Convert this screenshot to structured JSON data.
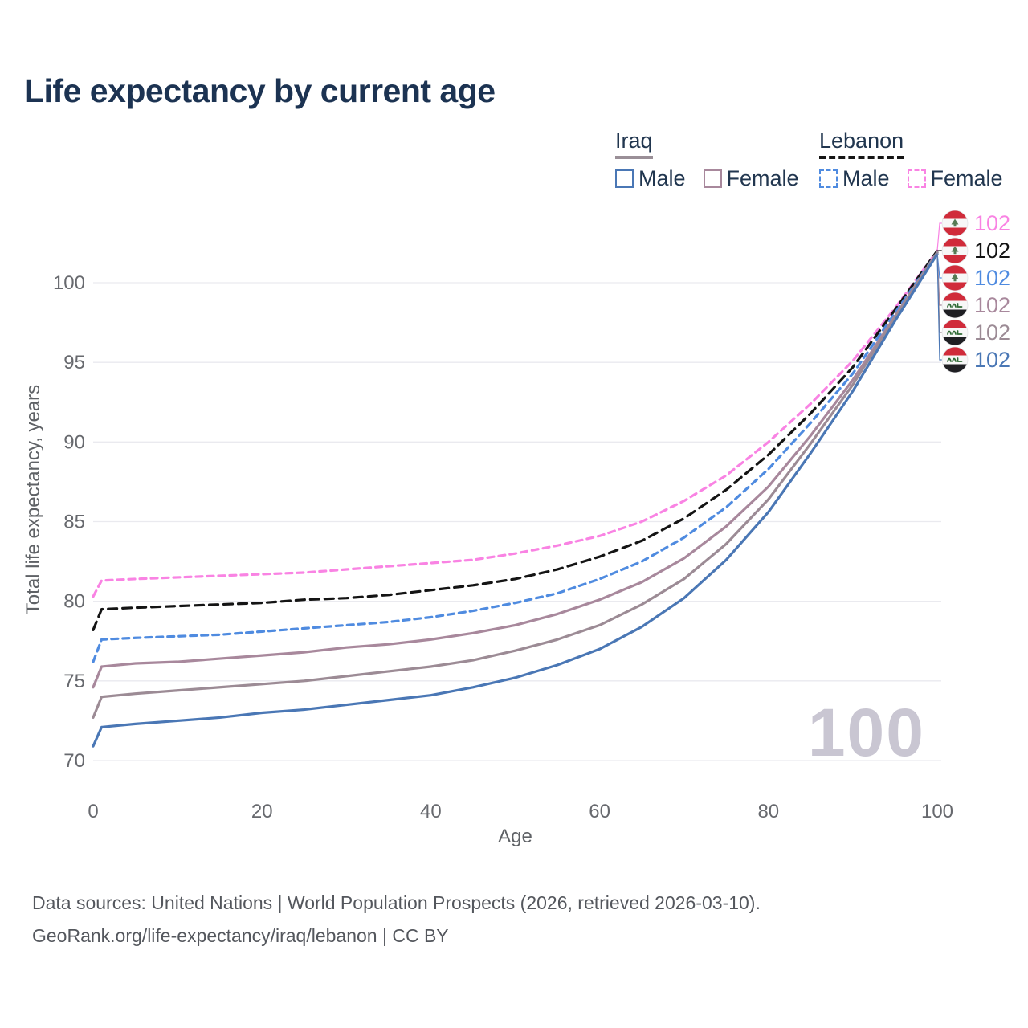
{
  "title": "Life expectancy by current age",
  "legend": {
    "groups": [
      {
        "name": "Iraq",
        "line_style": "solid",
        "underline_color": "#9a8f97",
        "items": [
          {
            "label": "Male",
            "color": "#4a77b5",
            "dashed": false
          },
          {
            "label": "Female",
            "color": "#a8889c",
            "dashed": false
          }
        ]
      },
      {
        "name": "Lebanon",
        "line_style": "dashed",
        "underline_color": "#151515",
        "items": [
          {
            "label": "Male",
            "color": "#4f8be0",
            "dashed": true
          },
          {
            "label": "Female",
            "color": "#f983e3",
            "dashed": true
          }
        ]
      }
    ]
  },
  "watermark": "100",
  "footer": {
    "line1": "Data sources: United Nations | World Population Prospects (2026, retrieved 2026-03-10).",
    "line2": "GeoRank.org/life-expectancy/iraq/lebanon | CC BY"
  },
  "chart_data": {
    "type": "line",
    "title": "Life expectancy by current age",
    "xlabel": "Age",
    "ylabel": "Total life expectancy, years",
    "xlim": [
      0,
      100
    ],
    "ylim": [
      70,
      102.5
    ],
    "x_ticks": [
      0,
      20,
      40,
      60,
      80,
      100
    ],
    "y_ticks": [
      70,
      75,
      80,
      85,
      90,
      95,
      100
    ],
    "grid": "horizontal",
    "legend_position": "top-right",
    "x": [
      0,
      1,
      5,
      10,
      15,
      20,
      25,
      30,
      35,
      40,
      45,
      50,
      55,
      60,
      65,
      70,
      75,
      80,
      85,
      90,
      95,
      100
    ],
    "series": [
      {
        "name": "Lebanon Female",
        "country": "Lebanon",
        "sex": "Female",
        "color": "#f983e3",
        "dashed": true,
        "end_label": "102",
        "end_row": 0,
        "flag": "lebanon-flag-icon",
        "values": [
          80.3,
          81.3,
          81.4,
          81.5,
          81.6,
          81.7,
          81.8,
          82.0,
          82.2,
          82.4,
          82.6,
          83.0,
          83.5,
          84.1,
          85.0,
          86.3,
          87.9,
          90.0,
          92.4,
          95.1,
          98.4,
          102.0
        ]
      },
      {
        "name": "Lebanon Both sexes",
        "country": "Lebanon",
        "sex": "Both",
        "color": "#141414",
        "dashed": true,
        "end_label": "102",
        "end_row": 1,
        "flag": "lebanon-flag-icon",
        "values": [
          78.2,
          79.5,
          79.6,
          79.7,
          79.8,
          79.9,
          80.1,
          80.2,
          80.4,
          80.7,
          81.0,
          81.4,
          82.0,
          82.8,
          83.8,
          85.2,
          87.0,
          89.2,
          91.8,
          94.7,
          98.3,
          102.0
        ]
      },
      {
        "name": "Lebanon Male",
        "country": "Lebanon",
        "sex": "Male",
        "color": "#4f8be0",
        "dashed": true,
        "end_label": "102",
        "end_row": 2,
        "flag": "lebanon-flag-icon",
        "values": [
          76.2,
          77.6,
          77.7,
          77.8,
          77.9,
          78.1,
          78.3,
          78.5,
          78.7,
          79.0,
          79.4,
          79.9,
          80.5,
          81.4,
          82.5,
          84.0,
          85.9,
          88.3,
          91.2,
          94.3,
          98.1,
          101.9
        ]
      },
      {
        "name": "Iraq Female",
        "country": "Iraq",
        "sex": "Female",
        "color": "#a8889c",
        "dashed": false,
        "end_label": "102",
        "end_row": 3,
        "flag": "iraq-flag-icon",
        "values": [
          74.6,
          75.9,
          76.1,
          76.2,
          76.4,
          76.6,
          76.8,
          77.1,
          77.3,
          77.6,
          78.0,
          78.5,
          79.2,
          80.1,
          81.2,
          82.7,
          84.7,
          87.2,
          90.4,
          93.9,
          97.9,
          101.9
        ]
      },
      {
        "name": "Iraq Both sexes",
        "country": "Iraq",
        "sex": "Both",
        "color": "#9c8b95",
        "dashed": false,
        "end_label": "102",
        "end_row": 4,
        "flag": "iraq-flag-icon",
        "values": [
          72.7,
          74.0,
          74.2,
          74.4,
          74.6,
          74.8,
          75.0,
          75.3,
          75.6,
          75.9,
          76.3,
          76.9,
          77.6,
          78.5,
          79.8,
          81.4,
          83.6,
          86.4,
          89.9,
          93.6,
          97.8,
          101.9
        ]
      },
      {
        "name": "Iraq Male",
        "country": "Iraq",
        "sex": "Male",
        "color": "#4a77b5",
        "dashed": false,
        "end_label": "102",
        "end_row": 5,
        "flag": "iraq-flag-icon",
        "values": [
          70.9,
          72.1,
          72.3,
          72.5,
          72.7,
          73.0,
          73.2,
          73.5,
          73.8,
          74.1,
          74.6,
          75.2,
          76.0,
          77.0,
          78.4,
          80.2,
          82.6,
          85.6,
          89.3,
          93.2,
          97.6,
          101.8
        ]
      }
    ]
  }
}
